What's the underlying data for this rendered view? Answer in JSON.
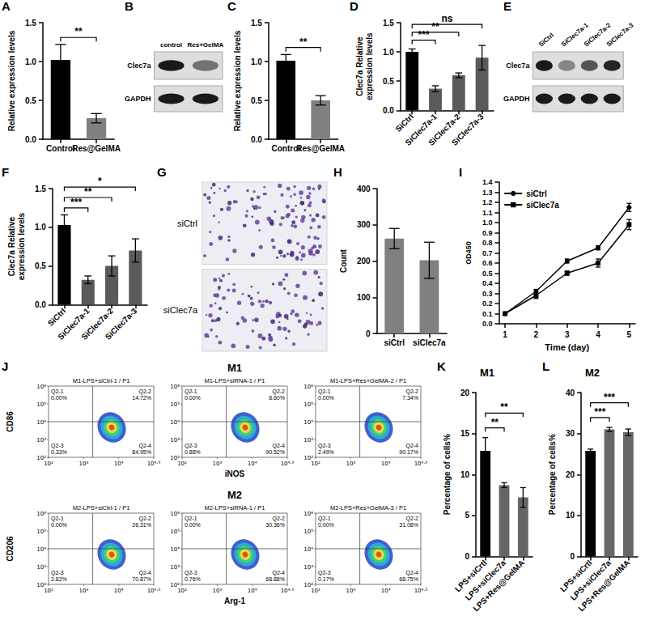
{
  "chart_data": [
    {
      "panel": "A",
      "type": "bar",
      "categories": [
        "Control",
        "Res@GelMA"
      ],
      "values": [
        1.02,
        0.27
      ],
      "errors": [
        0.2,
        0.06
      ],
      "colors": [
        "#000000",
        "#808080"
      ],
      "y_label": "Relative expression levels",
      "ylim": [
        0,
        1.5
      ],
      "yticks": [
        {
          "value": 0,
          "label": "0.0"
        },
        0.5,
        {
          "value": 1,
          "label": "1.0"
        },
        1.5
      ],
      "annotations": [
        {
          "from": "Control",
          "to": "Res@GelMA",
          "text": "**"
        }
      ]
    },
    {
      "panel": "C",
      "type": "bar",
      "categories": [
        "Control",
        "Res@GelMA"
      ],
      "values": [
        1.01,
        0.5
      ],
      "errors": [
        0.08,
        0.06
      ],
      "colors": [
        "#000000",
        "#808080"
      ],
      "y_label": "Relative expression levels",
      "ylim": [
        0,
        1.5
      ],
      "yticks": [
        {
          "value": 0,
          "label": "0.0"
        },
        0.5,
        {
          "value": 1,
          "label": "1.0"
        },
        1.5
      ],
      "annotations": [
        {
          "from": "Control",
          "to": "Res@GelMA",
          "text": "**"
        }
      ]
    },
    {
      "panel": "D",
      "type": "bar",
      "categories": [
        "SiCtrl",
        "SiClec7a-1",
        "SiClec7a-2",
        "SiClec7a-3"
      ],
      "values": [
        1.0,
        0.37,
        0.6,
        0.9
      ],
      "errors": [
        0.05,
        0.05,
        0.04,
        0.21
      ],
      "colors": [
        "#000000",
        "#5a5a5a",
        "#5a5a5a",
        "#5a5a5a"
      ],
      "y_label": "Clec7a Relative expression levels",
      "ylim": [
        0,
        1.5
      ],
      "yticks": [
        {
          "value": 0,
          "label": "0.0"
        },
        0.5,
        {
          "value": 1,
          "label": "1.0"
        },
        1.5
      ],
      "annotations": [
        {
          "from": "SiCtrl",
          "to": "SiClec7a-1",
          "text": "***"
        },
        {
          "from": "SiCtrl",
          "to": "SiClec7a-2",
          "text": "**"
        },
        {
          "from": "SiCtrl",
          "to": "SiClec7a-3",
          "text": "ns"
        }
      ]
    },
    {
      "panel": "F",
      "type": "bar",
      "categories": [
        "SiCtrl",
        "SiClec7a-1",
        "SiClec7a-2",
        "SiClec7a-3"
      ],
      "values": [
        1.03,
        0.32,
        0.5,
        0.7
      ],
      "errors": [
        0.13,
        0.05,
        0.13,
        0.15
      ],
      "colors": [
        "#000000",
        "#5a5a5a",
        "#5a5a5a",
        "#5a5a5a"
      ],
      "y_label": "Clec7a Relative expression levels",
      "ylim": [
        0,
        1.5
      ],
      "yticks": [
        {
          "value": 0,
          "label": "0.0"
        },
        0.5,
        {
          "value": 1,
          "label": "1.0"
        },
        1.5
      ],
      "annotations": [
        {
          "from": "SiCtrl",
          "to": "SiClec7a-1",
          "text": "***"
        },
        {
          "from": "SiCtrl",
          "to": "SiClec7a-2",
          "text": "**"
        },
        {
          "from": "SiCtrl",
          "to": "SiClec7a-3",
          "text": "*"
        }
      ]
    },
    {
      "panel": "H",
      "type": "bar",
      "categories": [
        "siCtrl",
        "siClec7a"
      ],
      "values": [
        262,
        202
      ],
      "errors": [
        28,
        50
      ],
      "colors": [
        "#808080",
        "#808080"
      ],
      "y_label": "Count",
      "ylim": [
        0,
        400
      ],
      "yticks": [
        0,
        100,
        200,
        300,
        400
      ]
    },
    {
      "panel": "I",
      "type": "line",
      "x": [
        1,
        2,
        3,
        4,
        5
      ],
      "xlim": [
        0.8,
        5.2
      ],
      "xticks": [
        1,
        2,
        3,
        4,
        5
      ],
      "x_label": "Time (day)",
      "y_label": "OD450",
      "ylim": [
        0,
        1.4
      ],
      "yticks": [
        {
          "value": 0,
          "label": "0.0"
        },
        0.1,
        0.2,
        0.3,
        0.4,
        0.5,
        0.6,
        0.7,
        0.8,
        0.9,
        {
          "value": 1,
          "label": "1.0"
        },
        1.1,
        1.2,
        1.3,
        1.4
      ],
      "legend": "upper left",
      "series": [
        {
          "name": "siCtrl",
          "color": "#000000",
          "marker": "circle",
          "line_style": "solid",
          "values": [
            0.1,
            0.32,
            0.62,
            0.75,
            1.15
          ],
          "errors": [
            0.01,
            0.02,
            0.02,
            0.02,
            0.04
          ]
        },
        {
          "name": "siClec7a",
          "color": "#000000",
          "marker": "square",
          "line_style": "solid",
          "values": [
            0.1,
            0.28,
            0.5,
            0.6,
            0.98
          ],
          "errors": [
            0.01,
            0.03,
            0.02,
            0.04,
            0.05
          ]
        }
      ]
    },
    {
      "panel": "K",
      "type": "bar",
      "title": "M1",
      "categories": [
        "LPS+siCrtl",
        "LPS+siClec7a",
        "LPS+Res@GelMA"
      ],
      "values": [
        12.9,
        8.7,
        7.2
      ],
      "errors": [
        1.6,
        0.3,
        1.2
      ],
      "colors": [
        "#000000",
        "#666666",
        "#666666"
      ],
      "y_label": "Percentage of cells%",
      "ylim": [
        0,
        20
      ],
      "yticks": [
        0,
        5,
        10,
        15,
        20
      ],
      "annotations": [
        {
          "from": "LPS+siCrtl",
          "to": "LPS+siClec7a",
          "text": "**"
        },
        {
          "from": "LPS+siCrtl",
          "to": "LPS+Res@GelMA",
          "text": "**"
        }
      ]
    },
    {
      "panel": "L",
      "type": "bar",
      "title": "M2",
      "categories": [
        "LPS+siCrtl",
        "LPS+siClec7a",
        "LPS+Res@GelMA"
      ],
      "values": [
        25.8,
        31.0,
        30.3
      ],
      "errors": [
        0.4,
        0.5,
        0.8
      ],
      "colors": [
        "#000000",
        "#666666",
        "#666666"
      ],
      "y_label": "Percentage of cells%",
      "ylim": [
        0,
        40
      ],
      "yticks": [
        0,
        10,
        20,
        30,
        40
      ],
      "annotations": [
        {
          "from": "LPS+siCrtl",
          "to": "LPS+siClec7a",
          "text": "***"
        },
        {
          "from": "LPS+siCrtl",
          "to": "LPS+Res@GelMA",
          "text": "***"
        }
      ]
    }
  ],
  "blots": [
    {
      "panel": "B",
      "lanes": [
        "control",
        "Res+GelMA"
      ],
      "rows": [
        "Clec7a",
        "GAPDH"
      ]
    },
    {
      "panel": "E",
      "lanes": [
        "SiCtrl",
        "SiClec7a-1",
        "SiClec7a-2",
        "SiClec7a-3"
      ],
      "rows": [
        "Clec7a",
        "GAPDH"
      ]
    }
  ],
  "images": {
    "panel": "G",
    "rows": [
      "siCtrl",
      "siClec7a"
    ]
  },
  "flow": {
    "panel": "J",
    "x_ticks": [
      "10²",
      "10³",
      "10⁴",
      "10⁴·⁵"
    ],
    "y_ticks": [
      "10²",
      "10³",
      "10⁴",
      "10⁵",
      "10⁶"
    ],
    "groups": [
      {
        "label": "M1",
        "y_axis": "CD86",
        "x_axis": "iNOS",
        "plots": [
          {
            "title": "M1-LPS+siCtrl-1 / P1",
            "quadrants": [
              [
                "Q2-1",
                "0.00%"
              ],
              [
                "Q2-2",
                "14.72%"
              ],
              [
                "Q2-3",
                "0.33%"
              ],
              [
                "Q2-4",
                "84.95%"
              ]
            ]
          },
          {
            "title": "M1-LPS+siRNA-1 / P1",
            "quadrants": [
              [
                "Q2-1",
                "0.00%"
              ],
              [
                "Q2-2",
                "8.60%"
              ],
              [
                "Q2-3",
                "0.88%"
              ],
              [
                "Q2-4",
                "90.52%"
              ]
            ]
          },
          {
            "title": "M1-LPS+Res+GelMA-2 / P1",
            "quadrants": [
              [
                "Q2-1",
                "0.00%"
              ],
              [
                "Q2-2",
                "7.34%"
              ],
              [
                "Q2-3",
                "2.49%"
              ],
              [
                "Q2-4",
                "90.17%"
              ]
            ]
          }
        ]
      },
      {
        "label": "M2",
        "y_axis": "CD206",
        "x_axis": "Arg-1",
        "plots": [
          {
            "title": "M2-LPS+siCtrl-1 / P1",
            "quadrants": [
              [
                "Q2-1",
                "0.00%"
              ],
              [
                "Q2-2",
                "26.31%"
              ],
              [
                "Q2-3",
                "2.82%"
              ],
              [
                "Q2-4",
                "70.87%"
              ]
            ]
          },
          {
            "title": "M2-LPS+siRNA-1 / P1",
            "quadrants": [
              [
                "Q2-1",
                "0.00%"
              ],
              [
                "Q2-2",
                "30.36%"
              ],
              [
                "Q2-3",
                "0.76%"
              ],
              [
                "Q2-4",
                "68.88%"
              ]
            ]
          },
          {
            "title": "M2-LPS+Res+GelMA-3 / P1",
            "quadrants": [
              [
                "Q2-1",
                "0.00%"
              ],
              [
                "Q2-2",
                "31.08%"
              ],
              [
                "Q2-3",
                "0.17%"
              ],
              [
                "Q2-4",
                "68.75%"
              ]
            ]
          }
        ]
      }
    ]
  }
}
